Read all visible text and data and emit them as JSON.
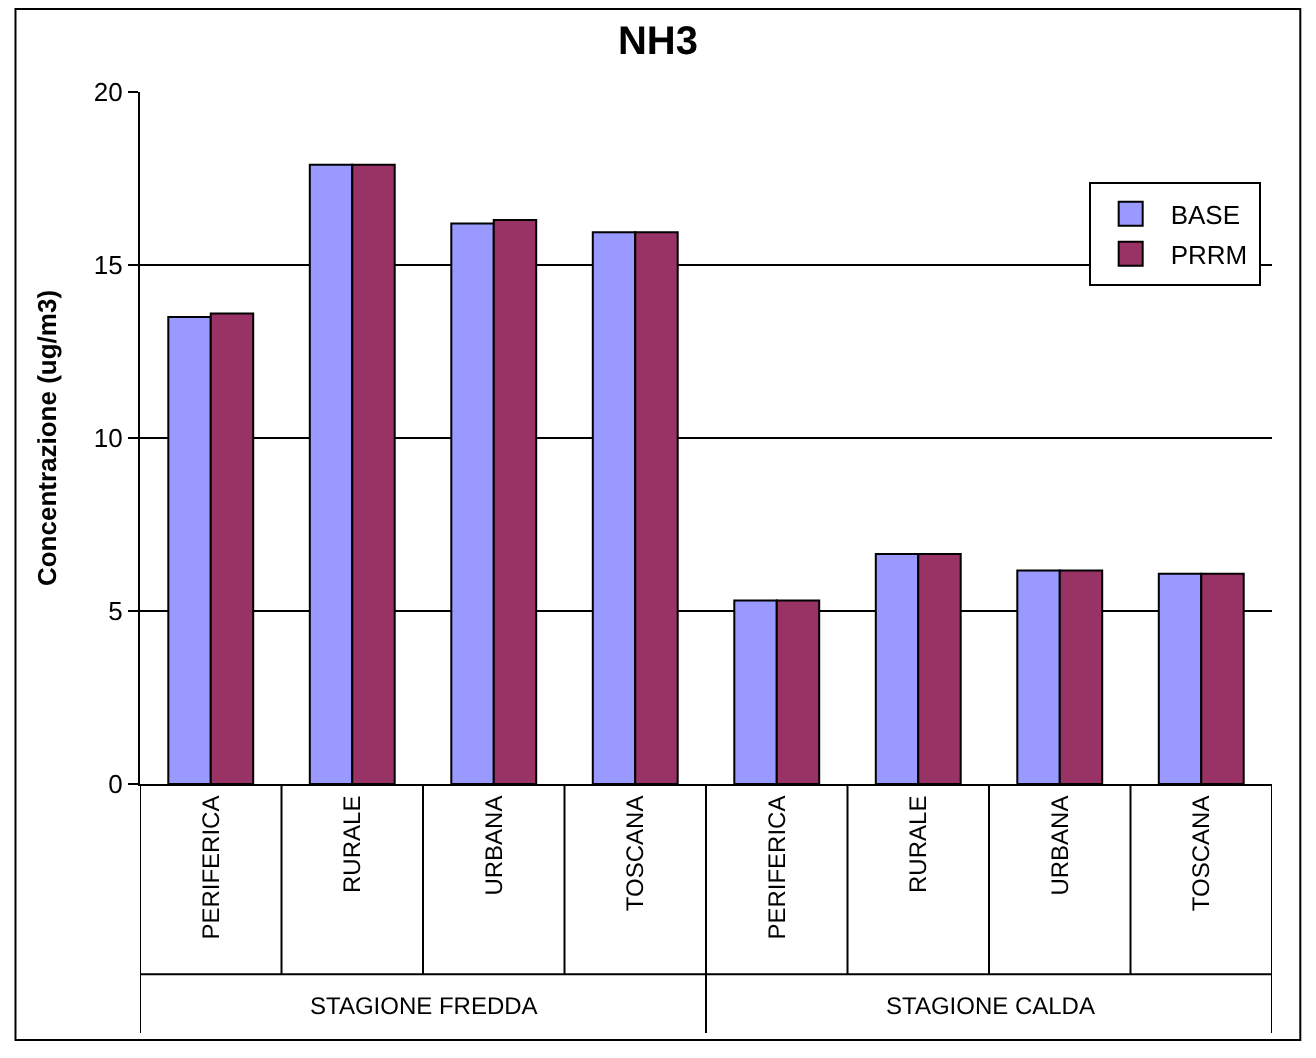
{
  "chart_data": {
    "type": "bar",
    "title": "NH3",
    "ylabel": "Concentrazione (ug/m3)",
    "categories": [
      "PERIFERICA",
      "RURALE",
      "URBANA",
      "TOSCANA",
      "PERIFERICA",
      "RURALE",
      "URBANA",
      "TOSCANA"
    ],
    "series": [
      {
        "name": "BASE",
        "color": "#9999ff",
        "values": [
          13.5,
          17.9,
          16.2,
          15.95,
          5.3,
          6.65,
          6.17,
          6.08
        ]
      },
      {
        "name": "PRRM",
        "color": "#993366",
        "values": [
          13.6,
          17.9,
          16.3,
          15.95,
          5.3,
          6.65,
          6.17,
          6.08
        ]
      }
    ],
    "annotations": [
      "STAGIONE FREDDA",
      "STAGIONE CALDA"
    ],
    "ylim": [
      0,
      20
    ],
    "yticks": [
      0,
      5,
      10,
      15,
      20
    ],
    "grid": "y",
    "legend": "top right"
  }
}
